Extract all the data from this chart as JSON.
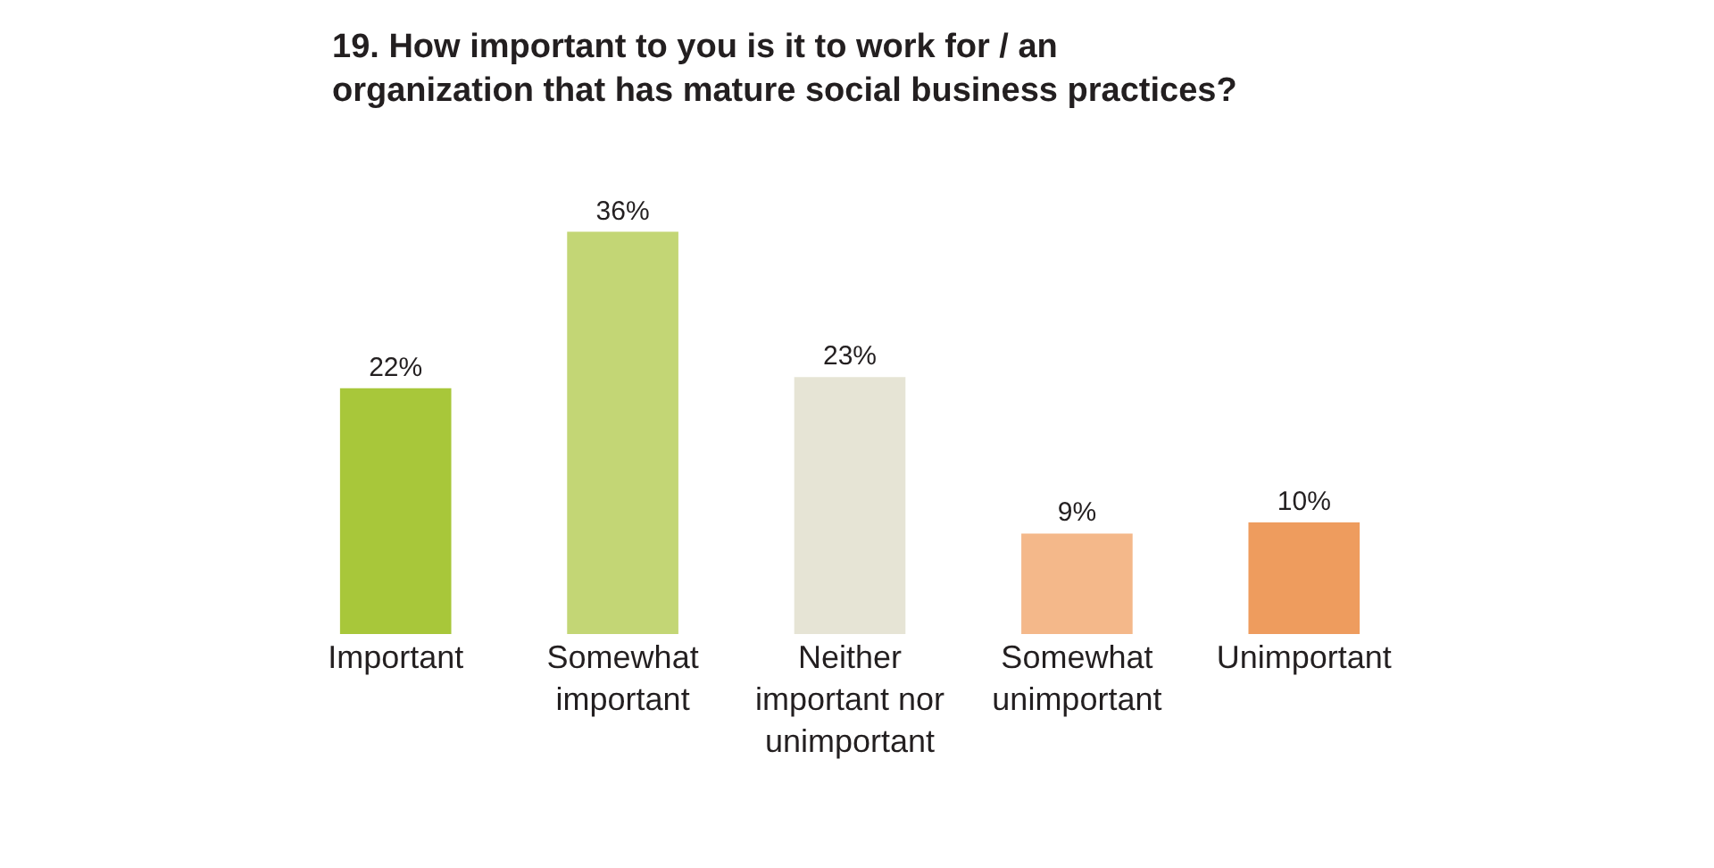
{
  "chart_data": {
    "type": "bar",
    "title": "19. How important to you is it to work for / an organization that has mature social business practices?",
    "categories": [
      "Important",
      "Somewhat important",
      "Neither important nor unimportant",
      "Somewhat unimportant",
      "Unimportant"
    ],
    "values": [
      22,
      36,
      23,
      9,
      10
    ],
    "colors": [
      "#a8c73a",
      "#c3d675",
      "#e6e4d5",
      "#f4b88a",
      "#ee9c5e"
    ],
    "value_labels": [
      "22%",
      "36%",
      "23%",
      "9%",
      "10%"
    ]
  }
}
